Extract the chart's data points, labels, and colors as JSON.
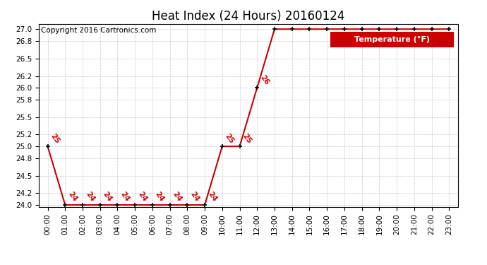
{
  "title": "Heat Index (24 Hours) 20160124",
  "copyright": "Copyright 2016 Cartronics.com",
  "legend_label": "Temperature (°F)",
  "legend_bg": "#cc0000",
  "legend_fg": "#ffffff",
  "x_labels": [
    "00:00",
    "01:00",
    "02:00",
    "03:00",
    "04:00",
    "05:00",
    "06:00",
    "07:00",
    "08:00",
    "09:00",
    "10:00",
    "11:00",
    "12:00",
    "13:00",
    "14:00",
    "15:00",
    "16:00",
    "17:00",
    "18:00",
    "19:00",
    "20:00",
    "21:00",
    "22:00",
    "23:00"
  ],
  "y_values": [
    25,
    24,
    24,
    24,
    24,
    24,
    24,
    24,
    24,
    24,
    25,
    25,
    26,
    27,
    27,
    27,
    27,
    27,
    27,
    27,
    27,
    27,
    27,
    27
  ],
  "line_color": "#cc0000",
  "marker_color": "#000000",
  "ylim_min": 23.97,
  "ylim_max": 27.09,
  "yticks": [
    24.0,
    24.2,
    24.5,
    24.8,
    25.0,
    25.2,
    25.5,
    25.8,
    26.0,
    26.2,
    26.5,
    26.8,
    27.0
  ],
  "bg_color": "#ffffff",
  "grid_color": "#bbbbbb",
  "label_color": "#cc0000",
  "label_fontsize": 7.5,
  "title_fontsize": 12,
  "axis_fontsize": 7.5,
  "copyright_fontsize": 7.5
}
